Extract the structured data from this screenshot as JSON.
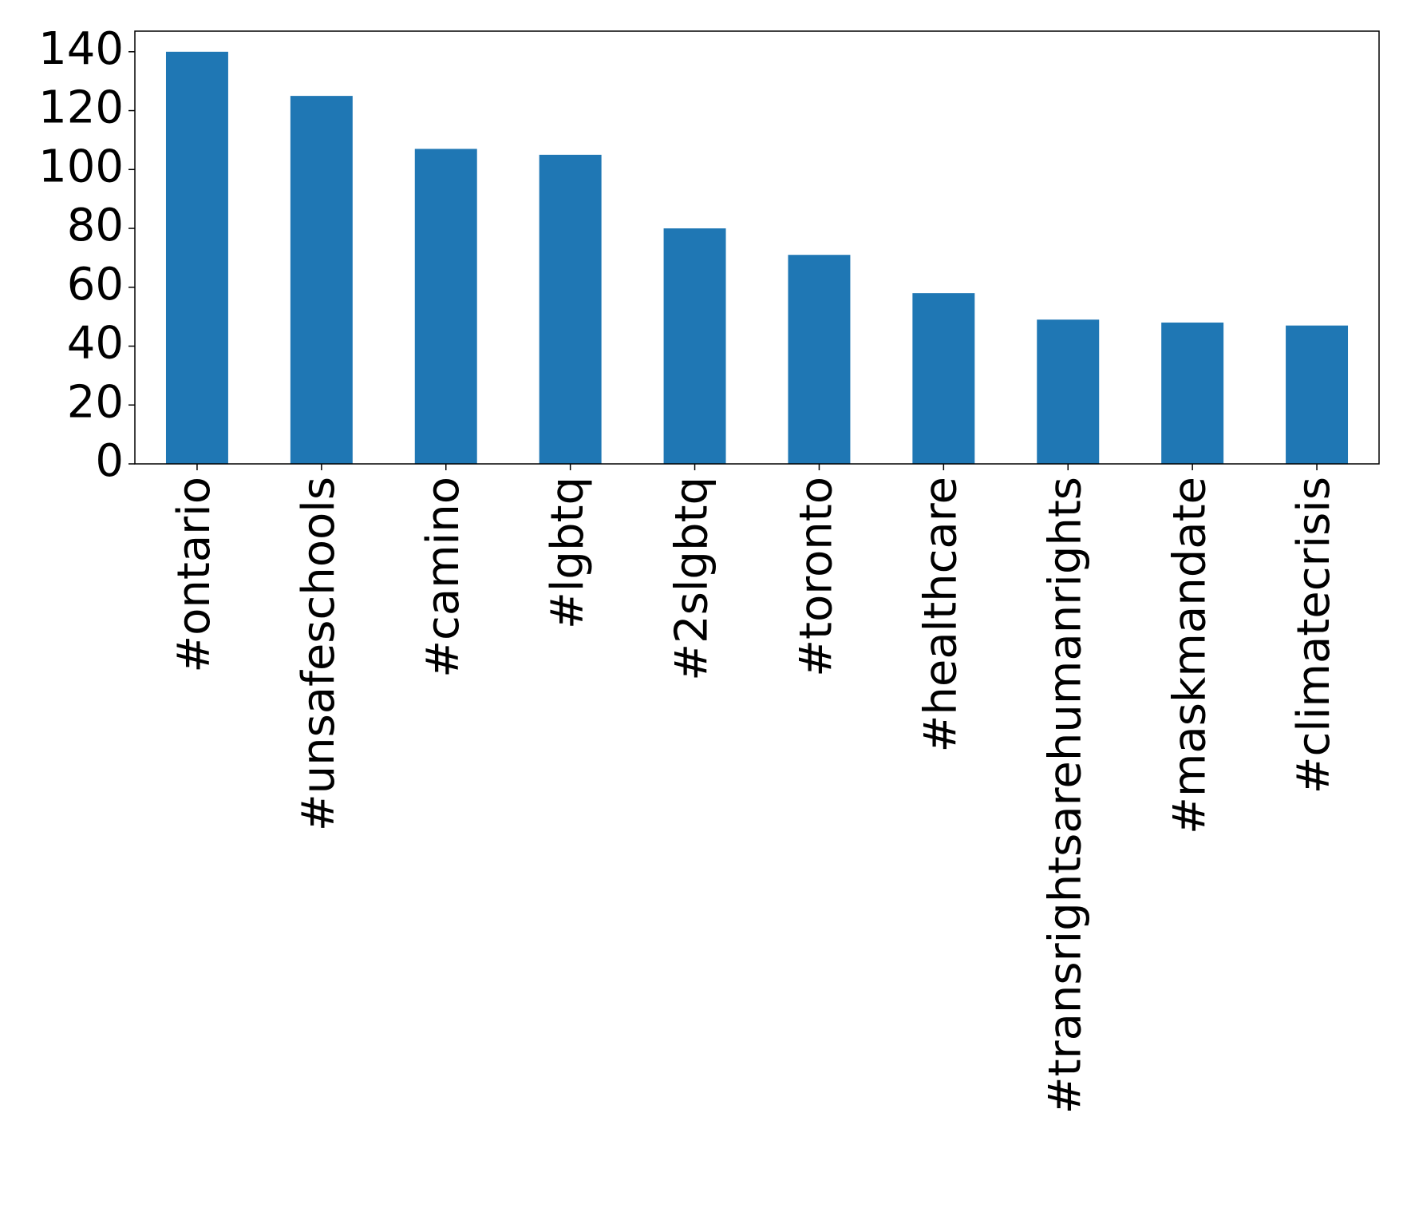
{
  "chart_data": {
    "type": "bar",
    "categories": [
      "#ontario",
      "#unsafeschools",
      "#camino",
      "#lgbtq",
      "#2slgbtq",
      "#toronto",
      "#healthcare",
      "#transrightsarehumanrights",
      "#maskmandate",
      "#climatecrisis"
    ],
    "values": [
      140,
      125,
      107,
      105,
      80,
      71,
      58,
      49,
      48,
      47
    ],
    "color": "#1f77b4",
    "ylim": [
      0,
      147
    ],
    "yticks": [
      0,
      20,
      40,
      60,
      80,
      100,
      120,
      140
    ],
    "grid": false
  }
}
